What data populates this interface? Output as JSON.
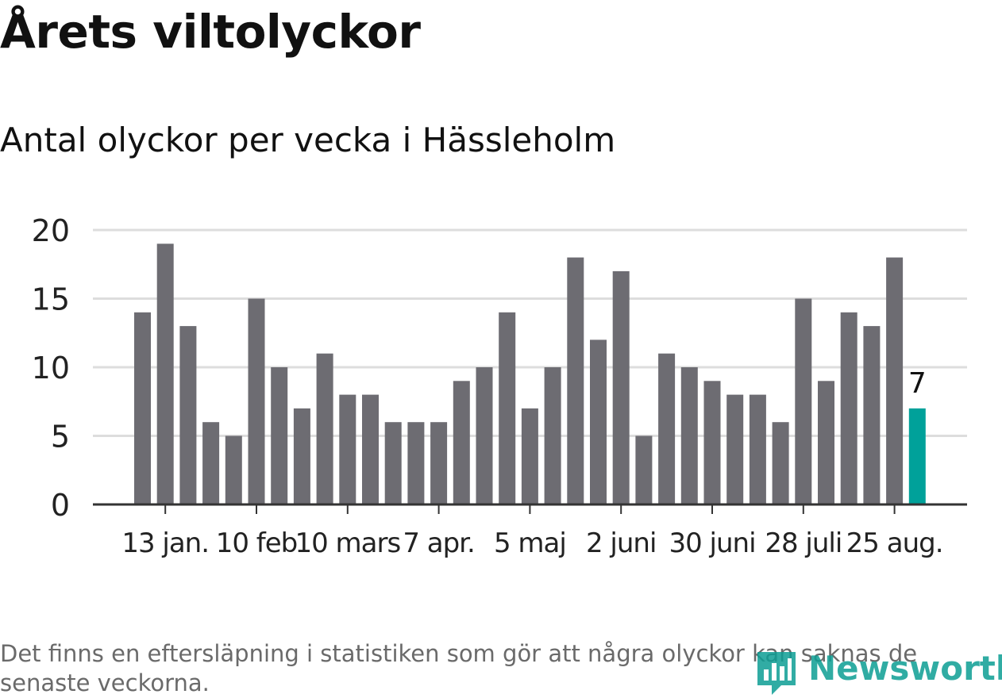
{
  "title": "Årets viltolyckor",
  "subtitle": "Antal olyckor per vecka i Hässleholm",
  "footnote": "Det finns en eftersläpning i statistiken som gör att några olyckor kan saknas de senaste veckorna.",
  "brand": {
    "name": "Newsworthy",
    "color": "#0d9e94"
  },
  "colors": {
    "bar": "#6d6c72",
    "highlight": "#00a19a",
    "grid": "#dddddd",
    "axis": "#333333",
    "text": "#222222"
  },
  "chart_data": {
    "type": "bar",
    "title": "Årets viltolyckor",
    "subtitle": "Antal olyckor per vecka i Hässleholm",
    "xlabel": "",
    "ylabel": "",
    "ylim": [
      0,
      20
    ],
    "yticks": [
      0,
      5,
      10,
      15,
      20
    ],
    "grid": true,
    "values": [
      14,
      19,
      13,
      6,
      5,
      15,
      10,
      7,
      11,
      8,
      8,
      6,
      6,
      6,
      9,
      10,
      14,
      7,
      10,
      18,
      12,
      17,
      5,
      11,
      10,
      9,
      8,
      8,
      6,
      15,
      9,
      14,
      13,
      18,
      7
    ],
    "highlight_index": 34,
    "highlight_label": "7",
    "x_ticks": [
      {
        "index": 1,
        "label": "13 jan."
      },
      {
        "index": 5,
        "label": "10 feb"
      },
      {
        "index": 9,
        "label": "10 mars"
      },
      {
        "index": 13,
        "label": "7 apr."
      },
      {
        "index": 17,
        "label": "5 maj"
      },
      {
        "index": 21,
        "label": "2 juni"
      },
      {
        "index": 25,
        "label": "30 juni"
      },
      {
        "index": 29,
        "label": "28 juli"
      },
      {
        "index": 33,
        "label": "25 aug."
      }
    ]
  }
}
